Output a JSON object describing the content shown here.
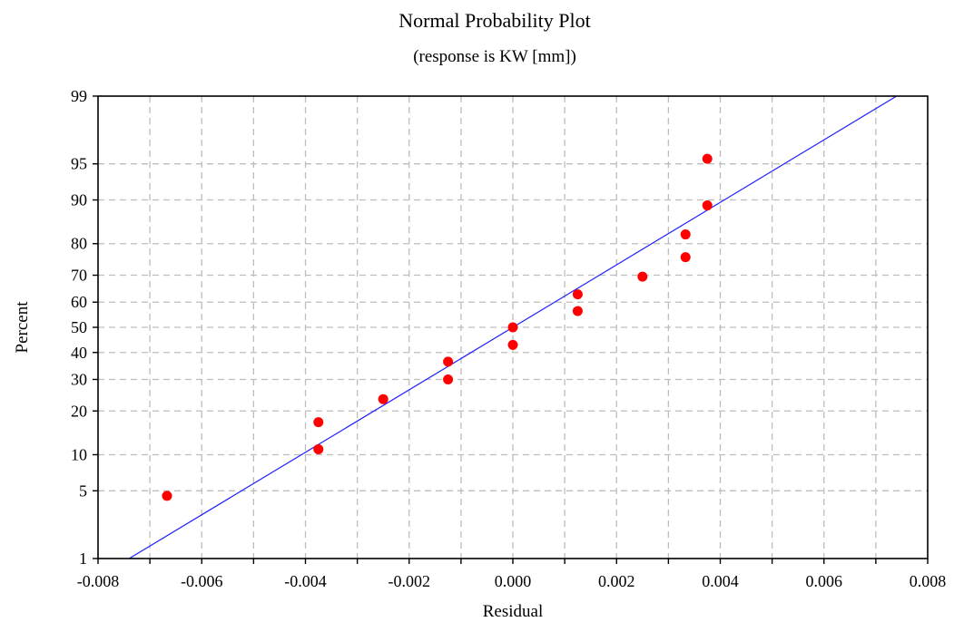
{
  "chart_data": {
    "type": "scatter",
    "title": "Normal Probability Plot",
    "subtitle": "(response is KW [mm])",
    "xlabel": "Residual",
    "ylabel": "Percent",
    "xlim": [
      -0.008,
      0.008
    ],
    "ylim": [
      1,
      99
    ],
    "y_scale": "normal-probability",
    "grid": true,
    "x_ticks": [
      -0.008,
      -0.007,
      -0.006,
      -0.005,
      -0.004,
      -0.003,
      -0.002,
      -0.001,
      0.0,
      0.001,
      0.002,
      0.003,
      0.004,
      0.005,
      0.006,
      0.007,
      0.008
    ],
    "x_tick_labels": [
      "-0.008",
      "-0.006",
      "-0.004",
      "-0.002",
      "0.000",
      "0.002",
      "0.004",
      "0.006",
      "0.008"
    ],
    "x_tick_label_values": [
      -0.008,
      -0.006,
      -0.004,
      -0.002,
      0.0,
      0.002,
      0.004,
      0.006,
      0.008
    ],
    "y_ticks": [
      1,
      5,
      10,
      20,
      30,
      40,
      50,
      60,
      70,
      80,
      90,
      95,
      99
    ],
    "y_tick_labels": [
      "1",
      "5",
      "10",
      "20",
      "30",
      "40",
      "50",
      "60",
      "70",
      "80",
      "90",
      "95",
      "99"
    ],
    "points": {
      "color": "#ff0000",
      "x": [
        -0.00667,
        -0.00375,
        -0.00375,
        -0.0025,
        -0.00125,
        -0.00125,
        0.0,
        0.0,
        0.00125,
        0.00125,
        0.0025,
        0.00333,
        0.00333,
        0.00375,
        0.00375
      ],
      "y": [
        4.5,
        11.0,
        17.0,
        23.5,
        30.0,
        36.5,
        43.0,
        50.0,
        56.5,
        63.0,
        69.5,
        76.0,
        82.5,
        89.0,
        95.5
      ]
    },
    "fit_line": {
      "color": "#1f1fff",
      "x": [
        -0.0074,
        0.0074
      ],
      "y": [
        1,
        99
      ]
    }
  }
}
